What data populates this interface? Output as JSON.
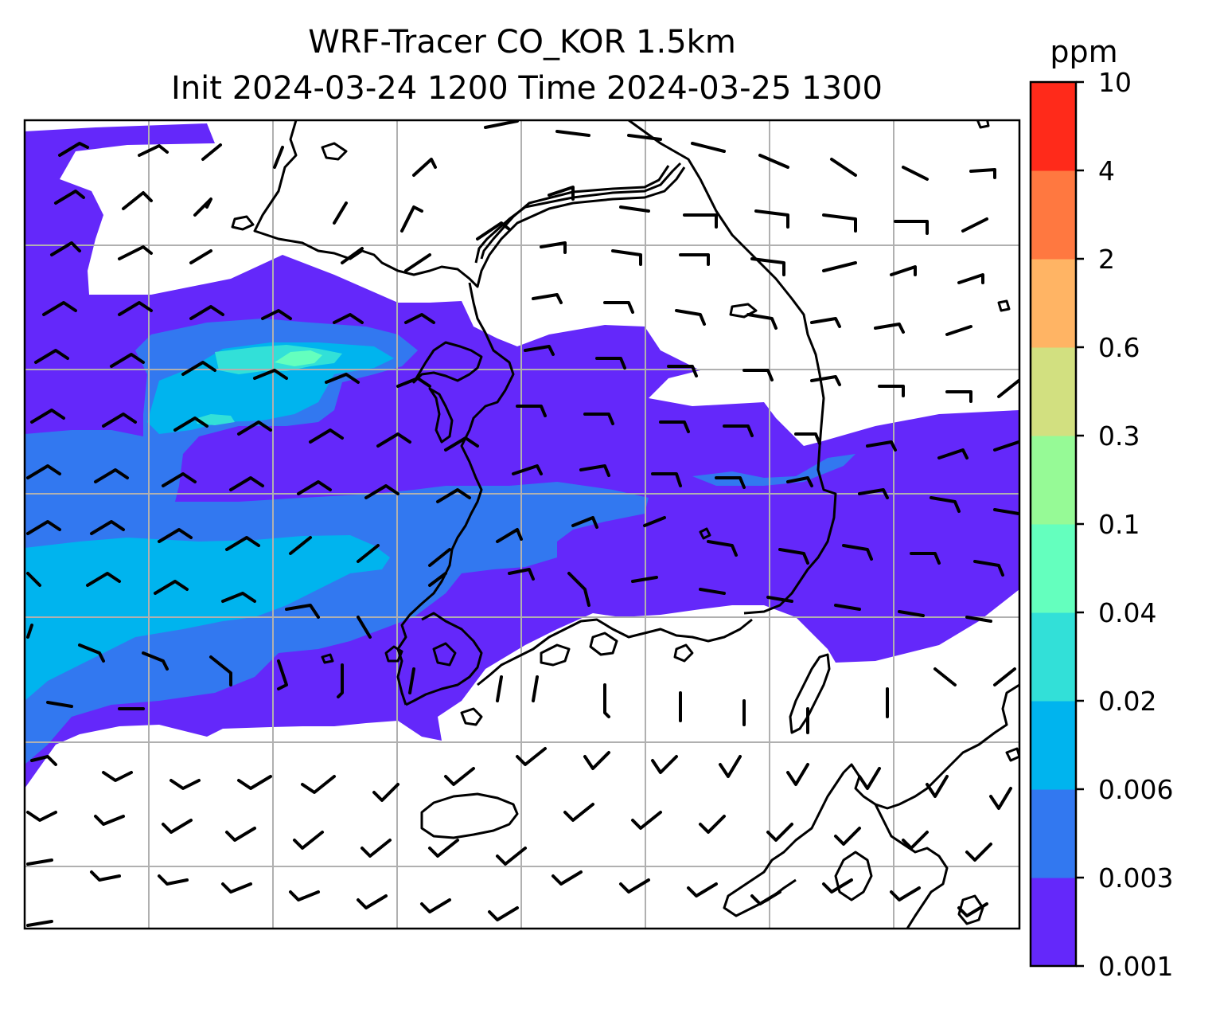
{
  "title": {
    "line1": "WRF-Tracer CO_KOR 1.5km",
    "line2": "Init 2024-03-24 1200 Time 2024-03-25 1300"
  },
  "colorbar": {
    "units": "ppm",
    "levels": [
      "0.001",
      "0.003",
      "0.006",
      "0.02",
      "0.04",
      "0.1",
      "0.3",
      "0.6",
      "2",
      "4",
      "10"
    ],
    "colors": [
      "#6428fa",
      "#3278f0",
      "#00b4ee",
      "#32e0d8",
      "#64ffbe",
      "#96fa96",
      "#d2e080",
      "#ffb464",
      "#ff7840",
      "#ff2a1a"
    ]
  },
  "map": {
    "grid_lines": "on",
    "wind_barbs": "shown",
    "coastlines": "shown"
  }
}
